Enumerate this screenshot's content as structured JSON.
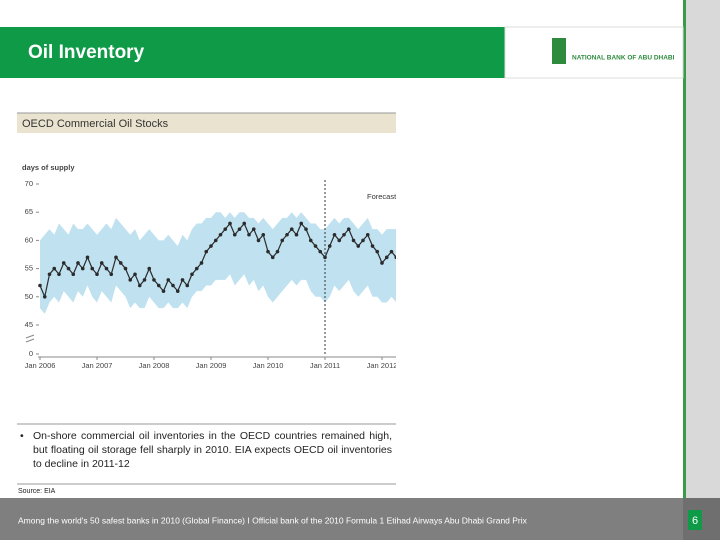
{
  "header": {
    "title": "Oil Inventory",
    "logo_text": "NATIONAL BANK OF ABU DHABI"
  },
  "chart_data": {
    "type": "line",
    "title": "OECD Commercial Oil Stocks",
    "ylabel": "days of supply",
    "annotation": "Forecast",
    "forecast_start": "2011-01",
    "xlim": [
      "2006-01",
      "2012-04"
    ],
    "xticks": [
      {
        "value": "2006-01",
        "label": "Jan 2006"
      },
      {
        "value": "2007-01",
        "label": "Jan 2007"
      },
      {
        "value": "2008-01",
        "label": "Jan 2008"
      },
      {
        "value": "2009-01",
        "label": "Jan 2009"
      },
      {
        "value": "2010-01",
        "label": "Jan 2010"
      },
      {
        "value": "2011-01",
        "label": "Jan 2011"
      },
      {
        "value": "2012-01",
        "label": "Jan 2012"
      }
    ],
    "ylim": [
      0,
      70
    ],
    "axis_break": [
      0,
      45
    ],
    "yticks": [
      0,
      45,
      50,
      55,
      60,
      65,
      70
    ],
    "x": [
      "2006-01",
      "2006-02",
      "2006-03",
      "2006-04",
      "2006-05",
      "2006-06",
      "2006-07",
      "2006-08",
      "2006-09",
      "2006-10",
      "2006-11",
      "2006-12",
      "2007-01",
      "2007-02",
      "2007-03",
      "2007-04",
      "2007-05",
      "2007-06",
      "2007-07",
      "2007-08",
      "2007-09",
      "2007-10",
      "2007-11",
      "2007-12",
      "2008-01",
      "2008-02",
      "2008-03",
      "2008-04",
      "2008-05",
      "2008-06",
      "2008-07",
      "2008-08",
      "2008-09",
      "2008-10",
      "2008-11",
      "2008-12",
      "2009-01",
      "2009-02",
      "2009-03",
      "2009-04",
      "2009-05",
      "2009-06",
      "2009-07",
      "2009-08",
      "2009-09",
      "2009-10",
      "2009-11",
      "2009-12",
      "2010-01",
      "2010-02",
      "2010-03",
      "2010-04",
      "2010-05",
      "2010-06",
      "2010-07",
      "2010-08",
      "2010-09",
      "2010-10",
      "2010-11",
      "2010-12",
      "2011-01",
      "2011-02",
      "2011-03",
      "2011-04",
      "2011-05",
      "2011-06",
      "2011-07",
      "2011-08",
      "2011-09",
      "2011-10",
      "2011-11",
      "2011-12",
      "2012-01",
      "2012-02",
      "2012-03",
      "2012-04"
    ],
    "series": [
      {
        "name": "days of supply",
        "color": "#2b2b2b",
        "values": [
          52,
          50,
          54,
          55,
          54,
          56,
          55,
          54,
          56,
          55,
          57,
          55,
          54,
          56,
          55,
          54,
          57,
          56,
          55,
          53,
          54,
          52,
          53,
          55,
          53,
          52,
          51,
          53,
          52,
          51,
          53,
          52,
          54,
          55,
          56,
          58,
          59,
          60,
          61,
          62,
          63,
          61,
          62,
          63,
          61,
          62,
          60,
          61,
          58,
          57,
          58,
          60,
          61,
          62,
          61,
          63,
          62,
          60,
          59,
          58,
          57,
          59,
          61,
          60,
          61,
          62,
          60,
          59,
          60,
          61,
          59,
          58,
          56,
          57,
          58,
          57
        ]
      }
    ],
    "band": {
      "color": "#bfe1f0",
      "upper": [
        60,
        61,
        62,
        61,
        63,
        62,
        61,
        63,
        62,
        62,
        63,
        62,
        61,
        62,
        63,
        62,
        64,
        63,
        62,
        61,
        62,
        60,
        61,
        62,
        61,
        60,
        60,
        61,
        60,
        59,
        61,
        60,
        62,
        63,
        63,
        64,
        64,
        65,
        65,
        64,
        65,
        64,
        65,
        65,
        64,
        64,
        63,
        64,
        63,
        62,
        63,
        64,
        64,
        65,
        64,
        65,
        64,
        63,
        63,
        62,
        62,
        63,
        64,
        63,
        64,
        64,
        63,
        62,
        63,
        64,
        62,
        62,
        61,
        62,
        62,
        62
      ],
      "lower": [
        48,
        47,
        49,
        50,
        49,
        51,
        50,
        49,
        51,
        50,
        52,
        50,
        49,
        51,
        50,
        49,
        52,
        51,
        50,
        48,
        49,
        48,
        48,
        50,
        49,
        48,
        48,
        49,
        48,
        48,
        49,
        48,
        50,
        51,
        51,
        52,
        52,
        53,
        53,
        53,
        54,
        52,
        53,
        54,
        52,
        53,
        51,
        52,
        50,
        49,
        50,
        51,
        52,
        53,
        52,
        53,
        53,
        51,
        50,
        50,
        49,
        50,
        52,
        51,
        52,
        53,
        51,
        50,
        51,
        52,
        50,
        50,
        49,
        49,
        50,
        49
      ]
    }
  },
  "bullet": "On-shore commercial oil inventories in the OECD countries remained high, but floating oil storage fell sharply in 2010. EIA expects OECD oil inventories to decline in 2011-12",
  "source": "Source: EIA",
  "footer": {
    "text": "Among the world's 50 safest banks in 2010 (Global Finance) I Official bank of the 2010 Formula 1 Etihad Airways Abu Dhabi Grand Prix",
    "page": "6"
  }
}
